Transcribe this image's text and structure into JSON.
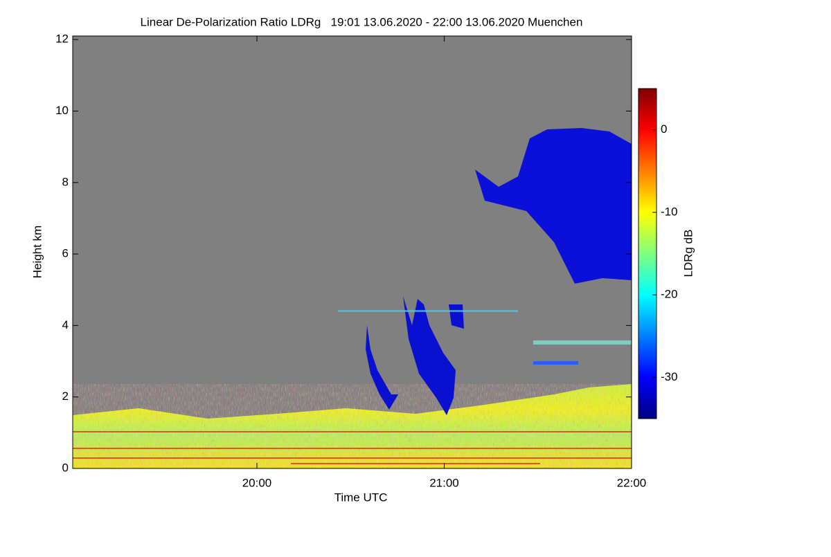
{
  "chart_data": {
    "type": "heatmap",
    "title": "Linear De-Polarization Ratio LDRg   19:01 13.06.2020 - 22:00 13.06.2020 Muenchen",
    "x_label": "Time UTC",
    "y_label": "Height km",
    "xlim": [
      19.0167,
      22
    ],
    "xticks": [
      {
        "value": 20,
        "label": "20:00"
      },
      {
        "value": 21,
        "label": "21:00"
      },
      {
        "value": 22,
        "label": "22:00"
      }
    ],
    "ylim": [
      0,
      12.1
    ],
    "yticks": [
      0,
      2,
      4,
      6,
      8,
      10,
      12
    ],
    "colorbar": {
      "label": "LDRg dB",
      "lim": [
        -35,
        5
      ],
      "ticks": [
        0,
        -10,
        -20,
        -30
      ],
      "colormap": "jet"
    }
  }
}
